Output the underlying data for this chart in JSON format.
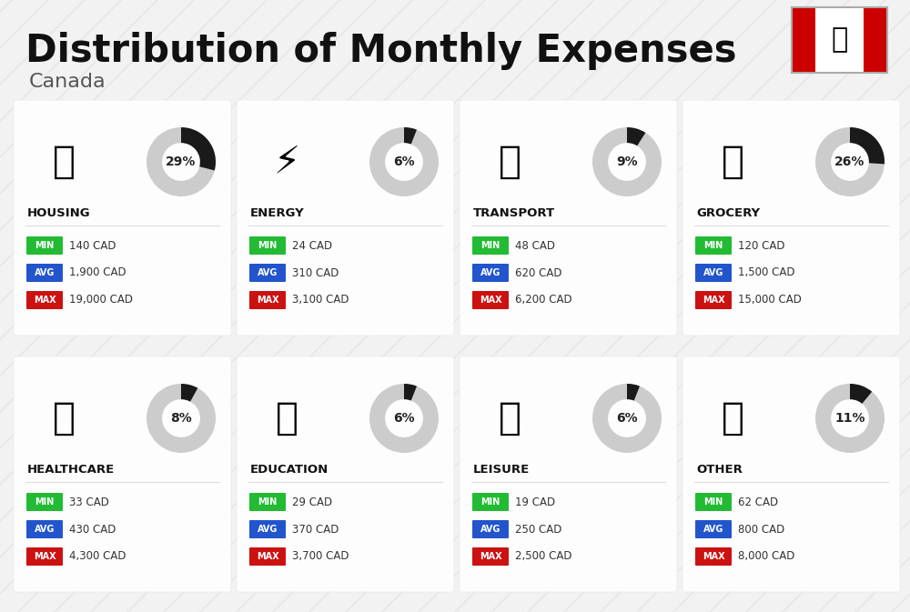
{
  "title": "Distribution of Monthly Expenses",
  "subtitle": "Canada",
  "background_color": "#f2f2f2",
  "title_fontsize": 30,
  "subtitle_fontsize": 16,
  "categories": [
    {
      "name": "HOUSING",
      "percent": 29,
      "min": "140 CAD",
      "avg": "1,900 CAD",
      "max": "19,000 CAD",
      "row": 0,
      "col": 0
    },
    {
      "name": "ENERGY",
      "percent": 6,
      "min": "24 CAD",
      "avg": "310 CAD",
      "max": "3,100 CAD",
      "row": 0,
      "col": 1
    },
    {
      "name": "TRANSPORT",
      "percent": 9,
      "min": "48 CAD",
      "avg": "620 CAD",
      "max": "6,200 CAD",
      "row": 0,
      "col": 2
    },
    {
      "name": "GROCERY",
      "percent": 26,
      "min": "120 CAD",
      "avg": "1,500 CAD",
      "max": "15,000 CAD",
      "row": 0,
      "col": 3
    },
    {
      "name": "HEALTHCARE",
      "percent": 8,
      "min": "33 CAD",
      "avg": "430 CAD",
      "max": "4,300 CAD",
      "row": 1,
      "col": 0
    },
    {
      "name": "EDUCATION",
      "percent": 6,
      "min": "29 CAD",
      "avg": "370 CAD",
      "max": "3,700 CAD",
      "row": 1,
      "col": 1
    },
    {
      "name": "LEISURE",
      "percent": 6,
      "min": "19 CAD",
      "avg": "250 CAD",
      "max": "2,500 CAD",
      "row": 1,
      "col": 2
    },
    {
      "name": "OTHER",
      "percent": 11,
      "min": "62 CAD",
      "avg": "800 CAD",
      "max": "8,000 CAD",
      "row": 1,
      "col": 3
    }
  ],
  "min_color": "#22bb33",
  "avg_color": "#2255cc",
  "max_color": "#cc1111",
  "label_color": "#ffffff",
  "donut_filled_color": "#1a1a1a",
  "donut_empty_color": "#cccccc",
  "category_name_color": "#111111",
  "value_text_color": "#333333",
  "stripe_color": "#e0e0e0",
  "card_bg": "#ffffff",
  "flag_red": "#cc0000",
  "flag_white": "#ffffff"
}
